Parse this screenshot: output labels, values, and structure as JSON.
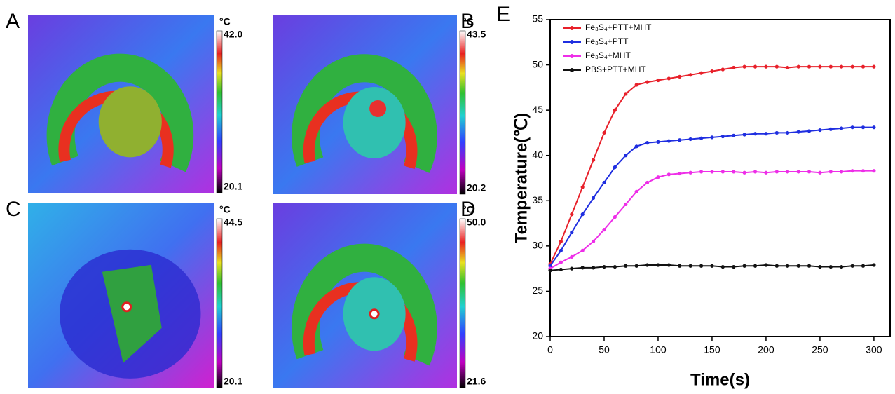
{
  "panels": [
    {
      "label": "A",
      "unit": "°C",
      "max": "42.0",
      "min": "20.1"
    },
    {
      "label": "B",
      "unit": "°C",
      "max": "43.5",
      "min": "20.2"
    },
    {
      "label": "C",
      "unit": "°C",
      "max": "44.5",
      "min": "20.1"
    },
    {
      "label": "D",
      "unit": "°C",
      "max": "50.0",
      "min": "21.6"
    }
  ],
  "chart_data": {
    "type": "line",
    "panel_label": "E",
    "xlabel": "Time(s)",
    "ylabel": "Temperature(℃)",
    "x": [
      0,
      10,
      20,
      30,
      40,
      50,
      60,
      70,
      80,
      90,
      100,
      110,
      120,
      130,
      140,
      150,
      160,
      170,
      180,
      190,
      200,
      210,
      220,
      230,
      240,
      250,
      260,
      270,
      280,
      290,
      300
    ],
    "series": [
      {
        "name": "Fe₃S₄+PTT+MHT",
        "color": "#e8202a",
        "values": [
          28,
          30.5,
          33.5,
          36.5,
          39.5,
          42.5,
          45,
          46.8,
          47.8,
          48.1,
          48.3,
          48.5,
          48.7,
          48.9,
          49.1,
          49.3,
          49.5,
          49.7,
          49.8,
          49.8,
          49.8,
          49.8,
          49.7,
          49.8,
          49.8,
          49.8,
          49.8,
          49.8,
          49.8,
          49.8,
          49.8
        ]
      },
      {
        "name": "Fe₃S₄+PTT",
        "color": "#1f2ee0",
        "values": [
          27.8,
          29.5,
          31.5,
          33.5,
          35.3,
          37,
          38.7,
          40,
          41,
          41.4,
          41.5,
          41.6,
          41.7,
          41.8,
          41.9,
          42,
          42.1,
          42.2,
          42.3,
          42.4,
          42.4,
          42.5,
          42.5,
          42.6,
          42.7,
          42.8,
          42.9,
          43,
          43.1,
          43.1,
          43.1
        ]
      },
      {
        "name": "Fe₃S₄+MHT",
        "color": "#ee2ee8",
        "values": [
          27.5,
          28.2,
          28.8,
          29.5,
          30.5,
          31.8,
          33.2,
          34.6,
          36,
          37,
          37.6,
          37.9,
          38,
          38.1,
          38.2,
          38.2,
          38.2,
          38.2,
          38.1,
          38.2,
          38.1,
          38.2,
          38.2,
          38.2,
          38.2,
          38.1,
          38.2,
          38.2,
          38.3,
          38.3,
          38.3
        ]
      },
      {
        "name": "PBS+PTT+MHT",
        "color": "#111111",
        "values": [
          27.3,
          27.4,
          27.5,
          27.6,
          27.6,
          27.7,
          27.7,
          27.8,
          27.8,
          27.9,
          27.9,
          27.9,
          27.8,
          27.8,
          27.8,
          27.8,
          27.7,
          27.7,
          27.8,
          27.8,
          27.9,
          27.8,
          27.8,
          27.8,
          27.8,
          27.7,
          27.7,
          27.7,
          27.8,
          27.8,
          27.9
        ]
      }
    ],
    "xlim": [
      0,
      315
    ],
    "ylim": [
      20,
      55
    ],
    "xticks": [
      0,
      50,
      100,
      150,
      200,
      250,
      300
    ],
    "yticks": [
      20,
      25,
      30,
      35,
      40,
      45,
      50,
      55
    ],
    "legend": "upper left",
    "markers": true
  }
}
